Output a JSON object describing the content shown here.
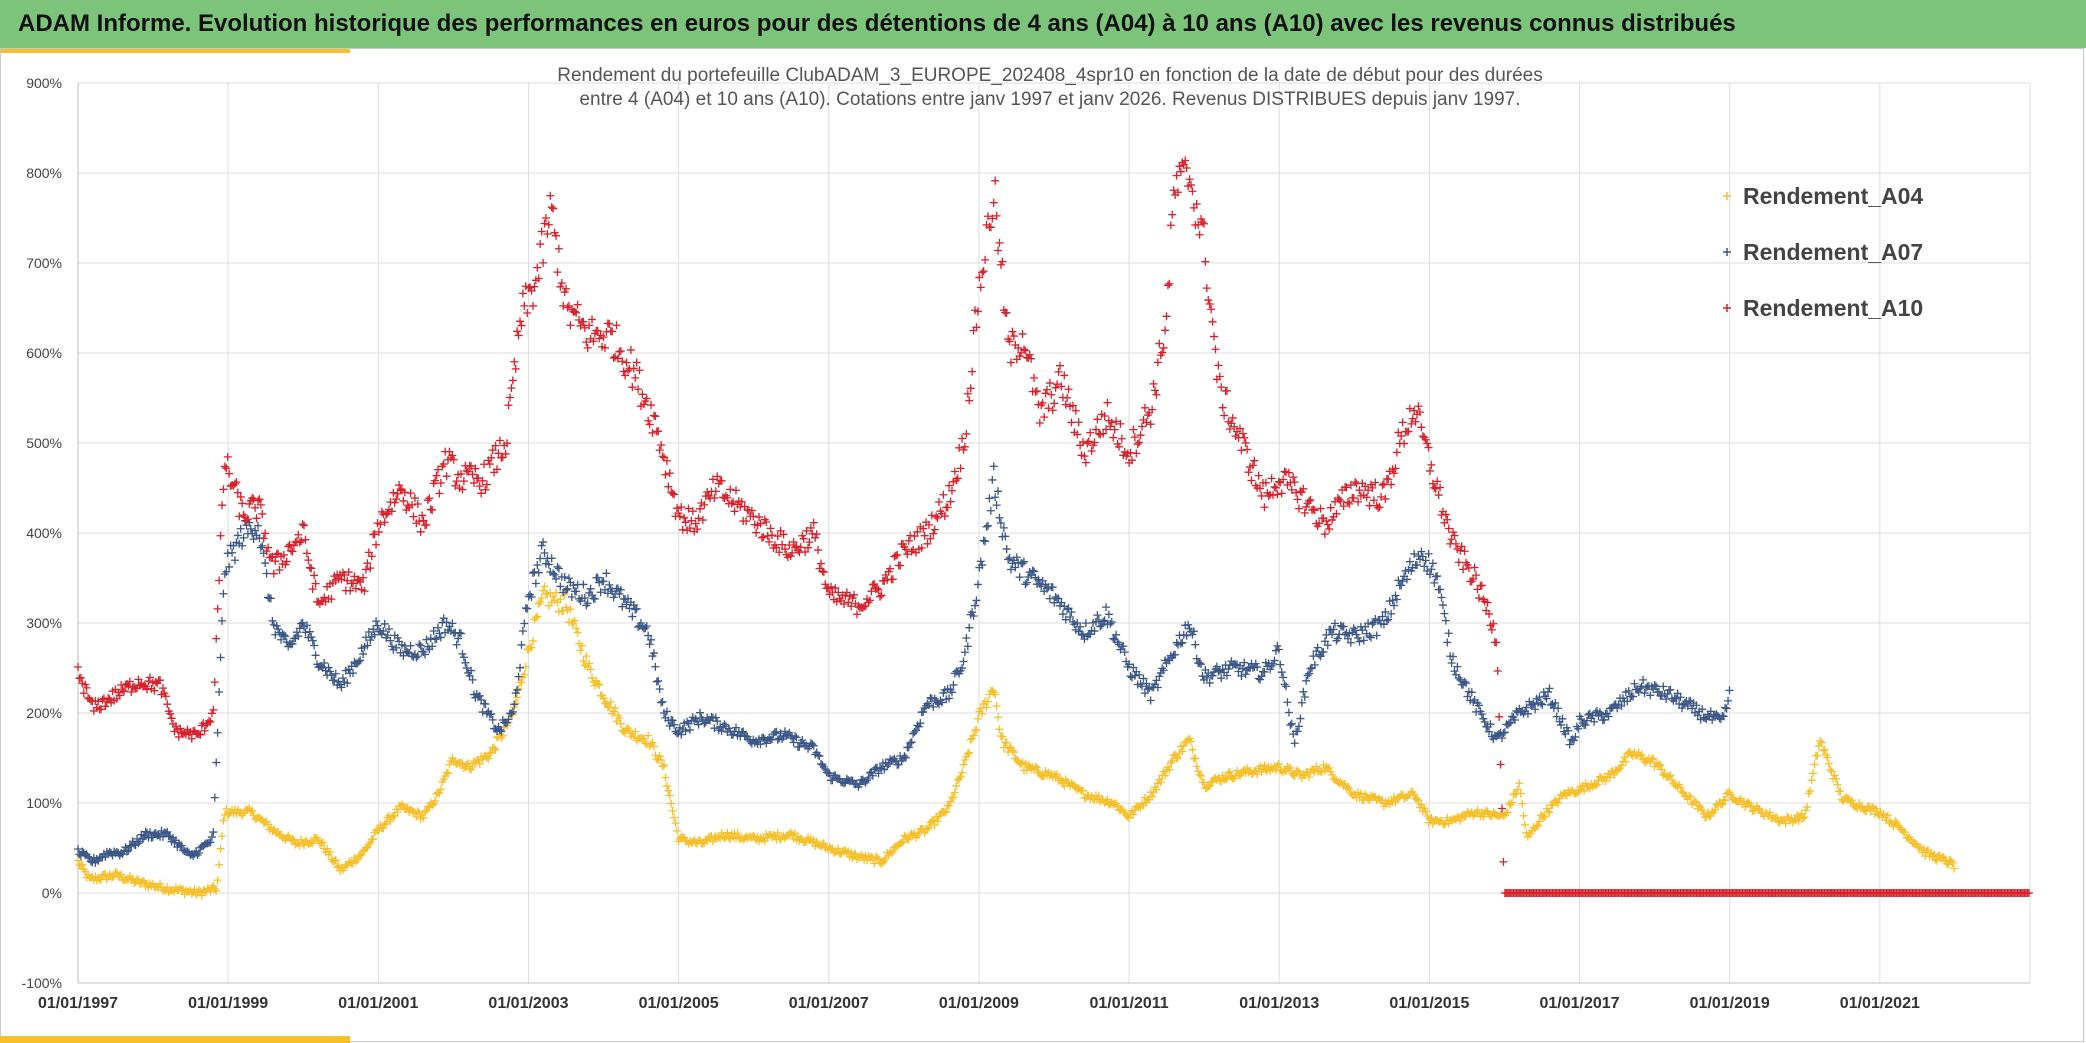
{
  "banner": {
    "title": "ADAM Informe. Evolution historique des performances en euros pour des détentions de 4 ans (A04) à 10 ans (A10) avec les revenus connus distribués"
  },
  "colors": {
    "banner_bg": "#7cc47a",
    "accent": "#f5c02a",
    "a04": "#f5c02a",
    "a07": "#3b5788",
    "a10": "#d8202a"
  },
  "chart_data": {
    "type": "scatter",
    "title_lines": [
      "Rendement du portefeuille ClubADAM_3_EUROPE_202408_4spr10  en fonction de la date de début pour des durées",
      "entre 4 (A04) et 10 ans (A10). Cotations entre janv 1997 et janv 2026. Revenus DISTRIBUES depuis janv 1997."
    ],
    "x_tick_labels": [
      "01/01/1997",
      "01/01/1999",
      "01/01/2001",
      "01/01/2003",
      "01/01/2005",
      "01/01/2007",
      "01/01/2009",
      "01/01/2011",
      "01/01/2013",
      "01/01/2015",
      "01/01/2017",
      "01/01/2019",
      "01/01/2021"
    ],
    "x_tick_years": [
      1997,
      1999,
      2001,
      2003,
      2005,
      2007,
      2009,
      2011,
      2013,
      2015,
      2017,
      2019,
      2021
    ],
    "xlim": [
      1997,
      2023.0
    ],
    "y_tick_labels": [
      "-100%",
      "0%",
      "100%",
      "200%",
      "300%",
      "400%",
      "500%",
      "600%",
      "700%",
      "800%",
      "900%"
    ],
    "y_tick_values": [
      -100,
      0,
      100,
      200,
      300,
      400,
      500,
      600,
      700,
      800,
      900
    ],
    "ylim": [
      -100,
      900
    ],
    "grid": true,
    "legend_position": "top-right",
    "marker": "+",
    "series": [
      {
        "name": "Rendement_A04",
        "color": "#f5c02a",
        "keypoints": [
          [
            1997.0,
            35
          ],
          [
            1997.15,
            15
          ],
          [
            1997.5,
            20
          ],
          [
            1997.8,
            12
          ],
          [
            1998.2,
            5
          ],
          [
            1998.6,
            0
          ],
          [
            1998.85,
            5
          ],
          [
            1998.95,
            90
          ],
          [
            1999.3,
            90
          ],
          [
            1999.6,
            70
          ],
          [
            1999.9,
            55
          ],
          [
            2000.2,
            60
          ],
          [
            2000.5,
            25
          ],
          [
            2000.8,
            45
          ],
          [
            2001.0,
            70
          ],
          [
            2001.3,
            95
          ],
          [
            2001.6,
            85
          ],
          [
            2001.8,
            110
          ],
          [
            2002.0,
            150
          ],
          [
            2002.2,
            140
          ],
          [
            2002.5,
            155
          ],
          [
            2002.8,
            200
          ],
          [
            2003.0,
            270
          ],
          [
            2003.2,
            330
          ],
          [
            2003.5,
            320
          ],
          [
            2003.8,
            250
          ],
          [
            2004.0,
            220
          ],
          [
            2004.3,
            180
          ],
          [
            2004.6,
            170
          ],
          [
            2004.8,
            140
          ],
          [
            2005.0,
            60
          ],
          [
            2005.3,
            55
          ],
          [
            2005.6,
            65
          ],
          [
            2006.0,
            60
          ],
          [
            2006.5,
            65
          ],
          [
            2007.0,
            50
          ],
          [
            2007.4,
            40
          ],
          [
            2007.7,
            35
          ],
          [
            2008.0,
            60
          ],
          [
            2008.3,
            70
          ],
          [
            2008.6,
            95
          ],
          [
            2008.8,
            140
          ],
          [
            2009.0,
            195
          ],
          [
            2009.2,
            230
          ],
          [
            2009.3,
            170
          ],
          [
            2009.6,
            140
          ],
          [
            2010.0,
            130
          ],
          [
            2010.4,
            110
          ],
          [
            2010.8,
            100
          ],
          [
            2011.0,
            85
          ],
          [
            2011.3,
            110
          ],
          [
            2011.6,
            150
          ],
          [
            2011.8,
            170
          ],
          [
            2012.0,
            120
          ],
          [
            2012.3,
            130
          ],
          [
            2012.6,
            135
          ],
          [
            2013.0,
            140
          ],
          [
            2013.3,
            130
          ],
          [
            2013.6,
            140
          ],
          [
            2014.0,
            110
          ],
          [
            2014.4,
            100
          ],
          [
            2014.8,
            110
          ],
          [
            2015.0,
            80
          ],
          [
            2015.3,
            80
          ],
          [
            2015.6,
            90
          ],
          [
            2016.0,
            85
          ],
          [
            2016.2,
            120
          ],
          [
            2016.3,
            60
          ],
          [
            2016.5,
            85
          ],
          [
            2016.8,
            110
          ],
          [
            2017.0,
            115
          ],
          [
            2017.4,
            130
          ],
          [
            2017.7,
            155
          ],
          [
            2018.0,
            145
          ],
          [
            2018.4,
            110
          ],
          [
            2018.7,
            85
          ],
          [
            2019.0,
            110
          ],
          [
            2019.3,
            95
          ],
          [
            2019.7,
            80
          ],
          [
            2020.0,
            85
          ],
          [
            2020.2,
            170
          ],
          [
            2020.5,
            105
          ],
          [
            2020.8,
            95
          ],
          [
            2021.0,
            90
          ],
          [
            2021.3,
            70
          ],
          [
            2021.6,
            45
          ],
          [
            2021.9,
            35
          ],
          [
            2022.0,
            30
          ]
        ]
      },
      {
        "name": "Rendement_A07",
        "color": "#3b5788",
        "keypoints": [
          [
            1997.0,
            45
          ],
          [
            1997.2,
            35
          ],
          [
            1997.4,
            45
          ],
          [
            1997.6,
            45
          ],
          [
            1997.9,
            65
          ],
          [
            1998.2,
            65
          ],
          [
            1998.5,
            40
          ],
          [
            1998.8,
            60
          ],
          [
            1998.95,
            360
          ],
          [
            1999.2,
            400
          ],
          [
            1999.4,
            410
          ],
          [
            1999.6,
            300
          ],
          [
            1999.8,
            270
          ],
          [
            2000.0,
            300
          ],
          [
            2000.2,
            260
          ],
          [
            2000.5,
            230
          ],
          [
            2000.8,
            270
          ],
          [
            2001.0,
            300
          ],
          [
            2001.3,
            270
          ],
          [
            2001.6,
            270
          ],
          [
            2001.9,
            300
          ],
          [
            2002.1,
            280
          ],
          [
            2002.3,
            220
          ],
          [
            2002.6,
            180
          ],
          [
            2002.8,
            200
          ],
          [
            2003.0,
            330
          ],
          [
            2003.2,
            380
          ],
          [
            2003.5,
            340
          ],
          [
            2003.8,
            330
          ],
          [
            2004.0,
            350
          ],
          [
            2004.3,
            320
          ],
          [
            2004.6,
            290
          ],
          [
            2004.8,
            200
          ],
          [
            2005.0,
            180
          ],
          [
            2005.3,
            195
          ],
          [
            2005.6,
            185
          ],
          [
            2006.0,
            170
          ],
          [
            2006.4,
            175
          ],
          [
            2006.8,
            160
          ],
          [
            2007.0,
            130
          ],
          [
            2007.4,
            120
          ],
          [
            2007.7,
            140
          ],
          [
            2008.0,
            150
          ],
          [
            2008.3,
            210
          ],
          [
            2008.6,
            220
          ],
          [
            2008.8,
            260
          ],
          [
            2009.0,
            350
          ],
          [
            2009.2,
            460
          ],
          [
            2009.4,
            370
          ],
          [
            2009.7,
            350
          ],
          [
            2010.0,
            330
          ],
          [
            2010.4,
            290
          ],
          [
            2010.7,
            310
          ],
          [
            2011.0,
            250
          ],
          [
            2011.3,
            220
          ],
          [
            2011.6,
            270
          ],
          [
            2011.8,
            300
          ],
          [
            2012.0,
            240
          ],
          [
            2012.4,
            250
          ],
          [
            2012.8,
            245
          ],
          [
            2013.0,
            270
          ],
          [
            2013.2,
            165
          ],
          [
            2013.4,
            250
          ],
          [
            2013.7,
            290
          ],
          [
            2014.0,
            285
          ],
          [
            2014.4,
            300
          ],
          [
            2014.6,
            340
          ],
          [
            2014.9,
            380
          ],
          [
            2015.1,
            350
          ],
          [
            2015.3,
            260
          ],
          [
            2015.6,
            210
          ],
          [
            2015.9,
            170
          ],
          [
            2016.2,
            200
          ],
          [
            2016.6,
            220
          ],
          [
            2016.9,
            165
          ],
          [
            2017.0,
            190
          ],
          [
            2017.4,
            200
          ],
          [
            2017.8,
            230
          ],
          [
            2018.2,
            220
          ],
          [
            2018.6,
            200
          ],
          [
            2018.9,
            190
          ],
          [
            2019.0,
            220
          ]
        ]
      },
      {
        "name": "Rendement_A10",
        "color": "#d8202a",
        "keypoints": [
          [
            1997.0,
            245
          ],
          [
            1997.2,
            205
          ],
          [
            1997.5,
            220
          ],
          [
            1997.8,
            235
          ],
          [
            1998.1,
            230
          ],
          [
            1998.3,
            180
          ],
          [
            1998.6,
            175
          ],
          [
            1998.8,
            200
          ],
          [
            1998.95,
            480
          ],
          [
            1999.2,
            420
          ],
          [
            1999.4,
            430
          ],
          [
            1999.6,
            360
          ],
          [
            1999.8,
            380
          ],
          [
            2000.0,
            400
          ],
          [
            2000.2,
            320
          ],
          [
            2000.5,
            350
          ],
          [
            2000.8,
            340
          ],
          [
            2001.0,
            410
          ],
          [
            2001.3,
            450
          ],
          [
            2001.6,
            410
          ],
          [
            2001.9,
            480
          ],
          [
            2002.1,
            460
          ],
          [
            2002.4,
            460
          ],
          [
            2002.7,
            500
          ],
          [
            2002.9,
            640
          ],
          [
            2003.1,
            680
          ],
          [
            2003.3,
            760
          ],
          [
            2003.5,
            650
          ],
          [
            2003.8,
            620
          ],
          [
            2004.1,
            620
          ],
          [
            2004.4,
            580
          ],
          [
            2004.7,
            520
          ],
          [
            2005.0,
            420
          ],
          [
            2005.2,
            410
          ],
          [
            2005.5,
            450
          ],
          [
            2005.8,
            430
          ],
          [
            2006.2,
            400
          ],
          [
            2006.5,
            380
          ],
          [
            2006.8,
            400
          ],
          [
            2007.0,
            330
          ],
          [
            2007.4,
            320
          ],
          [
            2007.7,
            340
          ],
          [
            2008.0,
            380
          ],
          [
            2008.3,
            400
          ],
          [
            2008.6,
            440
          ],
          [
            2008.8,
            500
          ],
          [
            2009.0,
            670
          ],
          [
            2009.2,
            780
          ],
          [
            2009.4,
            600
          ],
          [
            2009.6,
            620
          ],
          [
            2009.8,
            530
          ],
          [
            2010.1,
            570
          ],
          [
            2010.4,
            490
          ],
          [
            2010.7,
            530
          ],
          [
            2011.0,
            490
          ],
          [
            2011.3,
            540
          ],
          [
            2011.5,
            640
          ],
          [
            2011.6,
            780
          ],
          [
            2011.8,
            800
          ],
          [
            2012.0,
            720
          ],
          [
            2012.2,
            560
          ],
          [
            2012.5,
            500
          ],
          [
            2012.8,
            440
          ],
          [
            2013.0,
            460
          ],
          [
            2013.3,
            440
          ],
          [
            2013.6,
            410
          ],
          [
            2014.0,
            450
          ],
          [
            2014.4,
            440
          ],
          [
            2014.6,
            500
          ],
          [
            2014.8,
            540
          ],
          [
            2015.0,
            480
          ],
          [
            2015.3,
            390
          ],
          [
            2015.6,
            350
          ],
          [
            2015.8,
            310
          ],
          [
            2015.9,
            280
          ],
          [
            2016.0,
            0
          ],
          [
            2023.0,
            0
          ]
        ]
      }
    ]
  }
}
